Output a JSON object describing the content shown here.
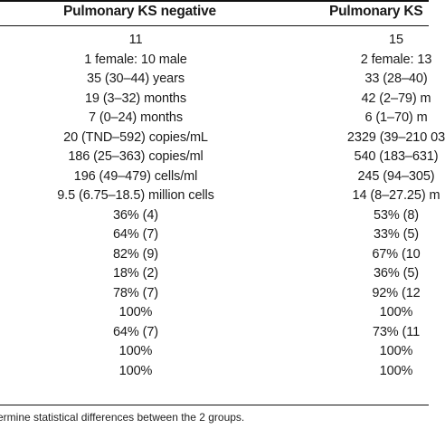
{
  "table": {
    "headers": {
      "negative": "Pulmonary KS negative",
      "positive": "Pulmonary KS"
    },
    "rows": [
      {
        "neg": "11",
        "pos": "15"
      },
      {
        "neg": "1 female: 10 male",
        "pos": "2 female: 13"
      },
      {
        "neg": "35 (30–44) years",
        "pos": "33 (28–40)"
      },
      {
        "neg": "19 (3–32) months",
        "pos": "42 (2–79) m"
      },
      {
        "neg": "7 (0–24) months",
        "pos": "6 (1–70) m"
      },
      {
        "neg": "20 (TND–592) copies/mL",
        "pos": "2329 (39–210 03"
      },
      {
        "neg": "186 (25–363) copies/ml",
        "pos": "540 (183–631)"
      },
      {
        "neg": "196 (49–479) cells/ml",
        "pos": "245 (94–305)"
      },
      {
        "neg": "9.5 (6.75–18.5) million cells",
        "pos": "14 (8–27.25) m"
      },
      {
        "neg": "36% (4)",
        "pos": "53% (8)"
      },
      {
        "neg": "64% (7)",
        "pos": "33% (5)"
      },
      {
        "neg": "82% (9)",
        "pos": "67% (10"
      },
      {
        "neg": "18% (2)",
        "pos": "36% (5)"
      },
      {
        "neg": "78% (7)",
        "pos": "92% (12"
      },
      {
        "neg": "100%",
        "pos": "100%"
      },
      {
        "neg": "64% (7)",
        "pos": "73% (11"
      },
      {
        "neg": "100%",
        "pos": "100%"
      },
      {
        "neg": "100%",
        "pos": "100%"
      }
    ],
    "footnote": "ermine statistical differences between the 2 groups."
  }
}
